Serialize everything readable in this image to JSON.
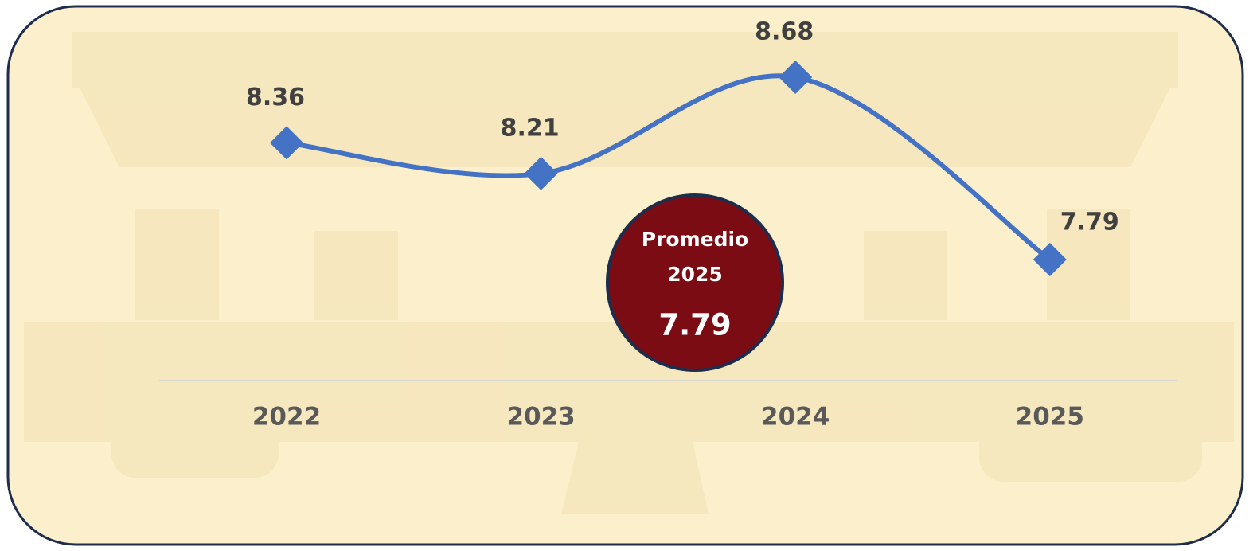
{
  "chart_data": {
    "type": "line",
    "categories": [
      "2022",
      "2023",
      "2024",
      "2025"
    ],
    "series": [
      {
        "name": null,
        "color": "#4472c4",
        "values": [
          8.36,
          8.21,
          8.68,
          7.79
        ]
      }
    ],
    "smooth": true,
    "marker": "diamond",
    "annotation": {
      "lines": [
        "Promedio",
        "2025"
      ],
      "value": 7.79,
      "color": "#7b0c14"
    }
  }
}
